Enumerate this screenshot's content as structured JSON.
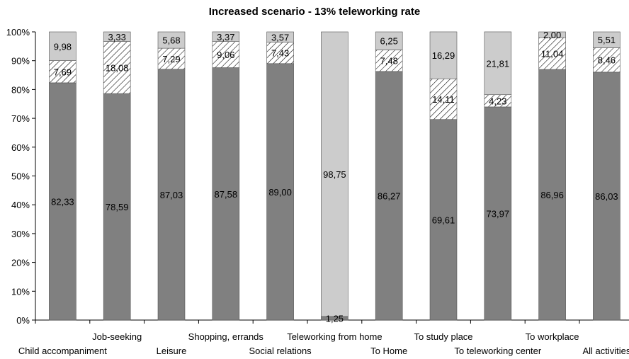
{
  "chart_data": {
    "type": "bar",
    "stacked": true,
    "percent": true,
    "title": "Increased scenario - 13% teleworking rate",
    "xlabel": "",
    "ylabel": "",
    "ylim": [
      0,
      100
    ],
    "yticks": [
      "0%",
      "10%",
      "20%",
      "30%",
      "40%",
      "50%",
      "60%",
      "70%",
      "80%",
      "90%",
      "100%"
    ],
    "grid": false,
    "legend": "none",
    "categories": [
      "Child accompaniment",
      "Job-seeking",
      "Leisure",
      "Shopping, errands",
      "Social relations",
      "Teleworking from home",
      "To Home",
      "To study place",
      "To teleworking center",
      "To workplace",
      "All activities"
    ],
    "series": [
      {
        "fill": "#808080",
        "pattern": "solid",
        "values": [
          82.33,
          78.59,
          87.03,
          87.58,
          89.0,
          1.25,
          86.27,
          69.61,
          73.97,
          86.96,
          86.03
        ],
        "labels": [
          "82,33",
          "78,59",
          "87,03",
          "87,58",
          "89,00",
          "1,25",
          "86,27",
          "69,61",
          "73,97",
          "86,96",
          "86,03"
        ]
      },
      {
        "fill": "#ffffff",
        "pattern": "hatch",
        "values": [
          7.69,
          18.08,
          7.29,
          9.06,
          7.43,
          0,
          7.48,
          14.11,
          4.23,
          11.04,
          8.46
        ],
        "labels": [
          "7,69",
          "18,08",
          "7,29",
          "9,06",
          "7,43",
          "",
          "7,48",
          "14,11",
          "4,23",
          "11,04",
          "8,46"
        ]
      },
      {
        "fill": "#cccccc",
        "pattern": "solid",
        "values": [
          9.98,
          3.33,
          5.68,
          3.37,
          3.57,
          98.75,
          6.25,
          16.29,
          21.81,
          2.0,
          5.51
        ],
        "labels": [
          "9,98",
          "3,33",
          "5,68",
          "3,37",
          "3,57",
          "98,75",
          "6,25",
          "16,29",
          "21,81",
          "2,00",
          "5,51"
        ]
      }
    ]
  }
}
